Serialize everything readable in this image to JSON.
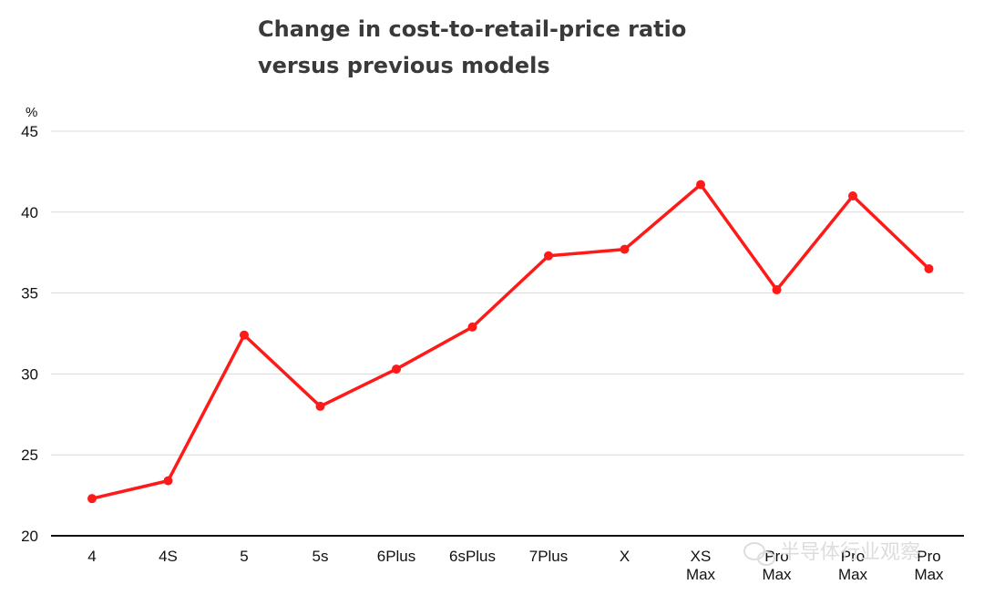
{
  "chart_data": {
    "type": "line",
    "title_lines": [
      "Change in cost-to-retail-price ratio",
      "versus previous models"
    ],
    "ylabel": "%",
    "ylim": [
      20,
      45
    ],
    "yticks": [
      20,
      25,
      30,
      35,
      40,
      45
    ],
    "grid": true,
    "categories": [
      [
        "4"
      ],
      [
        "4S"
      ],
      [
        "5"
      ],
      [
        "5s"
      ],
      [
        "6Plus"
      ],
      [
        "6sPlus"
      ],
      [
        "7Plus"
      ],
      [
        "X"
      ],
      [
        "XS",
        "Max"
      ],
      [
        "Pro",
        "Max"
      ],
      [
        "Pro",
        "Max"
      ],
      [
        "Pro",
        "Max"
      ]
    ],
    "series": [
      {
        "values": [
          22.3,
          23.4,
          32.4,
          28.0,
          30.3,
          32.9,
          37.3,
          37.7,
          41.7,
          35.2,
          41.0,
          36.5
        ]
      }
    ],
    "line_color": "#ff1a1a",
    "watermark": "半导体行业观察"
  }
}
